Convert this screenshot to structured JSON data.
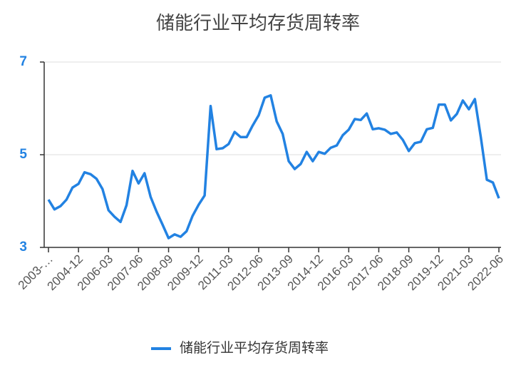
{
  "chart_data": {
    "type": "line",
    "title": "储能行业平均存货周转率",
    "categories": [
      "2003-…",
      null,
      null,
      null,
      null,
      "2004-12",
      null,
      null,
      null,
      null,
      "2006-03",
      null,
      null,
      null,
      null,
      "2007-06",
      null,
      null,
      null,
      null,
      "2008-09",
      null,
      null,
      null,
      null,
      "2009-12",
      null,
      null,
      null,
      null,
      "2011-03",
      null,
      null,
      null,
      null,
      "2012-06",
      null,
      null,
      null,
      null,
      "2013-09",
      null,
      null,
      null,
      null,
      "2014-12",
      null,
      null,
      null,
      null,
      "2016-03",
      null,
      null,
      null,
      null,
      "2017-06",
      null,
      null,
      null,
      null,
      "2018-09",
      null,
      null,
      null,
      null,
      "2019-12",
      null,
      null,
      null,
      null,
      "2021-03",
      null,
      null,
      null,
      null,
      "2022-06"
    ],
    "series": [
      {
        "name": "储能行业平均存货周转率",
        "color": "#2282e2",
        "values": [
          4.03,
          3.82,
          3.89,
          4.03,
          4.29,
          4.37,
          4.62,
          4.58,
          4.48,
          4.26,
          3.8,
          3.66,
          3.55,
          3.91,
          4.65,
          4.38,
          4.6,
          4.09,
          3.77,
          3.49,
          3.2,
          3.28,
          3.23,
          3.35,
          3.68,
          3.92,
          4.12,
          6.05,
          5.12,
          5.14,
          5.23,
          5.49,
          5.38,
          5.38,
          5.63,
          5.85,
          6.23,
          6.28,
          5.72,
          5.45,
          4.86,
          4.69,
          4.8,
          5.06,
          4.86,
          5.06,
          5.02,
          5.15,
          5.2,
          5.42,
          5.54,
          5.77,
          5.75,
          5.89,
          5.55,
          5.57,
          5.54,
          5.45,
          5.48,
          5.32,
          5.08,
          5.25,
          5.28,
          5.55,
          5.58,
          6.08,
          6.08,
          5.74,
          5.88,
          6.17,
          5.98,
          6.2,
          5.37,
          4.46,
          4.4,
          4.06
        ]
      }
    ],
    "ylim": [
      3,
      7
    ],
    "yticks": [
      3,
      5,
      7
    ],
    "grid": true,
    "legend": "bottom"
  }
}
